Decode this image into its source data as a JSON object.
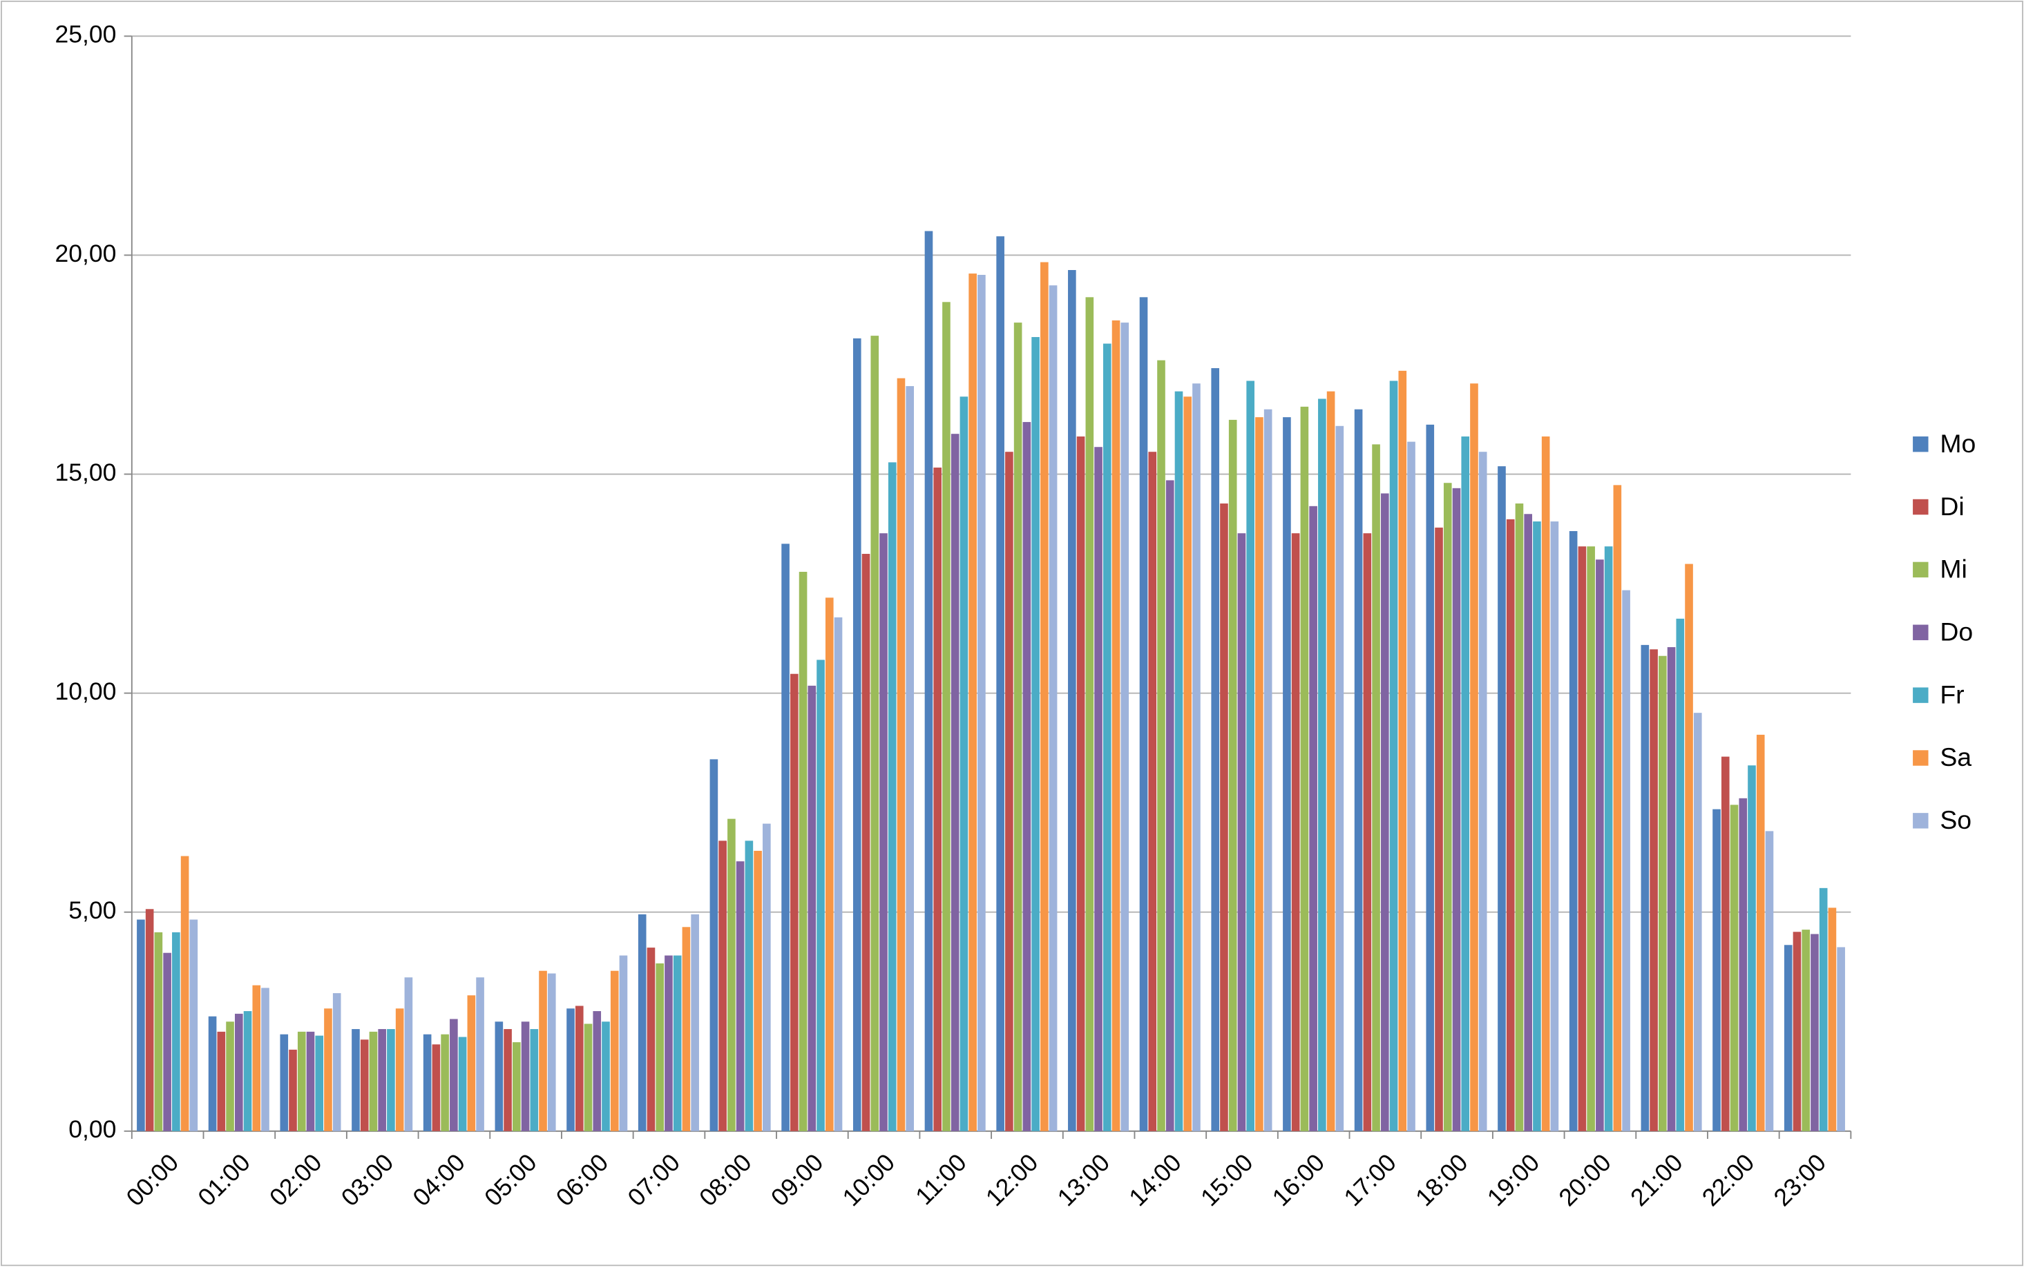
{
  "chart_data": {
    "type": "bar",
    "categories": [
      "00:00",
      "01:00",
      "02:00",
      "03:00",
      "04:00",
      "05:00",
      "06:00",
      "07:00",
      "08:00",
      "09:00",
      "10:00",
      "11:00",
      "12:00",
      "13:00",
      "14:00",
      "15:00",
      "16:00",
      "17:00",
      "18:00",
      "19:00",
      "20:00",
      "21:00",
      "22:00",
      "23:00"
    ],
    "series": [
      {
        "name": "Mo",
        "color": "#4f81bd",
        "values": [
          4.83,
          2.62,
          2.21,
          2.33,
          2.21,
          2.5,
          2.8,
          4.95,
          8.49,
          13.41,
          18.1,
          20.55,
          20.43,
          19.66,
          19.04,
          17.42,
          16.3,
          16.48,
          16.13,
          15.18,
          13.7,
          11.1,
          7.35,
          4.25
        ]
      },
      {
        "name": "Di",
        "color": "#c0504d",
        "values": [
          5.07,
          2.27,
          1.86,
          2.09,
          1.98,
          2.33,
          2.86,
          4.19,
          6.63,
          10.44,
          13.18,
          15.15,
          15.51,
          15.86,
          15.51,
          14.33,
          13.65,
          13.65,
          13.78,
          13.97,
          13.35,
          11.0,
          8.55,
          4.55
        ]
      },
      {
        "name": "Mi",
        "color": "#9bbb59",
        "values": [
          4.54,
          2.5,
          2.27,
          2.27,
          2.21,
          2.03,
          2.45,
          3.83,
          7.13,
          12.77,
          18.16,
          18.93,
          18.46,
          19.04,
          17.6,
          16.24,
          16.54,
          15.68,
          14.8,
          14.33,
          13.35,
          10.85,
          7.45,
          4.6
        ]
      },
      {
        "name": "Do",
        "color": "#8064a2",
        "values": [
          4.07,
          2.68,
          2.27,
          2.33,
          2.56,
          2.5,
          2.74,
          4.01,
          6.16,
          10.17,
          13.65,
          15.92,
          16.19,
          15.62,
          14.86,
          13.65,
          14.27,
          14.56,
          14.68,
          14.09,
          13.05,
          11.05,
          7.6,
          4.5
        ]
      },
      {
        "name": "Fr",
        "color": "#4bacc6",
        "values": [
          4.54,
          2.74,
          2.18,
          2.33,
          2.15,
          2.33,
          2.5,
          4.01,
          6.63,
          10.76,
          15.27,
          16.77,
          18.13,
          17.98,
          16.89,
          17.13,
          16.72,
          17.13,
          15.86,
          13.92,
          13.35,
          11.7,
          8.35,
          5.55
        ]
      },
      {
        "name": "Sa",
        "color": "#f79646",
        "values": [
          6.28,
          3.33,
          2.8,
          2.8,
          3.1,
          3.66,
          3.66,
          4.66,
          6.4,
          12.18,
          17.19,
          19.58,
          19.84,
          18.51,
          16.77,
          16.3,
          16.89,
          17.36,
          17.07,
          15.86,
          14.75,
          12.95,
          9.05,
          5.1
        ]
      },
      {
        "name": "So",
        "color": "#9eb3db",
        "values": [
          4.83,
          3.27,
          3.15,
          3.51,
          3.51,
          3.6,
          4.01,
          4.95,
          7.02,
          11.73,
          17.01,
          19.55,
          19.31,
          18.46,
          17.07,
          16.48,
          16.1,
          15.74,
          15.51,
          13.92,
          12.35,
          9.55,
          6.85,
          4.2
        ]
      }
    ],
    "ylim": [
      0,
      25
    ],
    "yticks": [
      {
        "value": 0,
        "label": "0,00"
      },
      {
        "value": 5,
        "label": "5,00"
      },
      {
        "value": 10,
        "label": "10,00"
      },
      {
        "value": 15,
        "label": "15,00"
      },
      {
        "value": 20,
        "label": "20,00"
      },
      {
        "value": 25,
        "label": "25,00"
      }
    ],
    "grid": true,
    "legend": "right"
  }
}
